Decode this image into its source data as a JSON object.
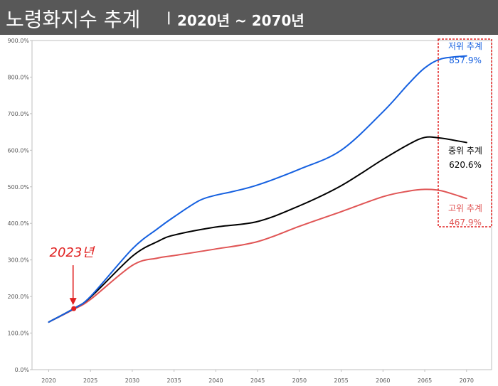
{
  "header": {
    "title": "노령화지수 추계",
    "separator": "|",
    "range": "2020년 ~ 2070년"
  },
  "annotation": {
    "label": "2023년",
    "x": 2023,
    "y": 167,
    "color": "#e02020"
  },
  "chart_data": {
    "type": "line",
    "title": "노령화지수 추계",
    "subtitle": "2020년 ~ 2070년",
    "xlabel": "",
    "ylabel": "",
    "xlim": [
      2018,
      2073
    ],
    "ylim": [
      0,
      900
    ],
    "x_ticks": [
      2020,
      2025,
      2030,
      2035,
      2040,
      2045,
      2050,
      2055,
      2060,
      2065,
      2070
    ],
    "y_ticks": [
      "0.0%",
      "100.0%",
      "200.0%",
      "300.0%",
      "400.0%",
      "500.0%",
      "600.0%",
      "700.0%",
      "800.0%",
      "900.0%"
    ],
    "y_tick_values": [
      0,
      100,
      200,
      300,
      400,
      500,
      600,
      700,
      800,
      900
    ],
    "grid": false,
    "series": [
      {
        "name": "저위 추계",
        "end_label": "857.9%",
        "color": "#1560e0",
        "x": [
          2020,
          2023,
          2025,
          2030,
          2033,
          2035,
          2038,
          2040,
          2042,
          2045,
          2050,
          2055,
          2060,
          2063,
          2065,
          2067,
          2070
        ],
        "values": [
          130,
          167,
          200,
          330,
          385,
          418,
          462,
          477,
          487,
          505,
          548,
          600,
          705,
          780,
          825,
          850,
          858
        ]
      },
      {
        "name": "중위 추계",
        "end_label": "620.6%",
        "color": "#000000",
        "x": [
          2020,
          2023,
          2025,
          2030,
          2033,
          2035,
          2040,
          2045,
          2050,
          2055,
          2060,
          2063,
          2065,
          2067,
          2070
        ],
        "values": [
          130,
          167,
          198,
          310,
          350,
          368,
          390,
          405,
          448,
          503,
          575,
          615,
          635,
          633,
          621
        ]
      },
      {
        "name": "고위 추계",
        "end_label": "467.9%",
        "color": "#e05555",
        "x": [
          2020,
          2023,
          2025,
          2030,
          2033,
          2035,
          2040,
          2045,
          2050,
          2055,
          2060,
          2063,
          2065,
          2067,
          2070
        ],
        "values": [
          130,
          165,
          192,
          285,
          305,
          312,
          330,
          350,
          392,
          432,
          473,
          488,
          493,
          489,
          468
        ]
      }
    ]
  }
}
